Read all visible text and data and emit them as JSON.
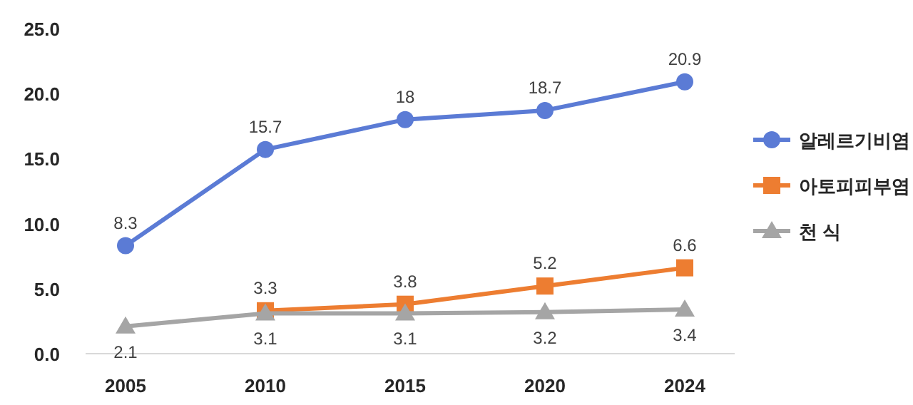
{
  "chart_data": {
    "type": "line",
    "categories": [
      "2005",
      "2010",
      "2015",
      "2020",
      "2024"
    ],
    "series": [
      {
        "name": "알레르기비염",
        "color": "#5b7bd5",
        "marker": "circle",
        "values": [
          8.3,
          15.7,
          18,
          18.7,
          20.9
        ]
      },
      {
        "name": "아토피피부염",
        "color": "#ed7d31",
        "marker": "square",
        "values": [
          null,
          3.3,
          3.8,
          5.2,
          6.6
        ]
      },
      {
        "name": "천 식",
        "color": "#a5a5a5",
        "marker": "triangle",
        "values": [
          2.1,
          3.1,
          3.1,
          3.2,
          3.4
        ]
      }
    ],
    "ylim": [
      0,
      25
    ],
    "yticks": [
      {
        "value": 0,
        "label": "0.0"
      },
      {
        "value": 5,
        "label": "5.0"
      },
      {
        "value": 10,
        "label": "10.0"
      },
      {
        "value": 15,
        "label": "15.0"
      },
      {
        "value": 20,
        "label": "20.0"
      },
      {
        "value": 25,
        "label": "25.0"
      }
    ],
    "data_labels": true,
    "legend": "right",
    "grid": false
  }
}
